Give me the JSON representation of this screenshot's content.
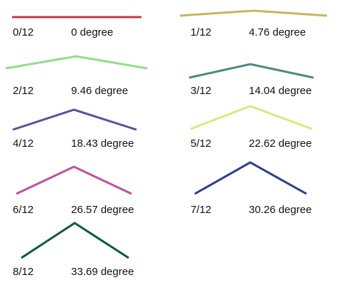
{
  "items": [
    {
      "pitch": "0/12",
      "angle": "0 degree",
      "color": "#c23a48"
    },
    {
      "pitch": "1/12",
      "angle": "4.76 degree",
      "color": "#c9b55e"
    },
    {
      "pitch": "2/12",
      "angle": "9.46 degree",
      "color": "#93dc8c"
    },
    {
      "pitch": "3/12",
      "angle": "14.04 degree",
      "color": "#4b8b82"
    },
    {
      "pitch": "4/12",
      "angle": "18.43 degree",
      "color": "#5b4fa2"
    },
    {
      "pitch": "5/12",
      "angle": "22.62 degree",
      "color": "#d9e97c"
    },
    {
      "pitch": "6/12",
      "angle": "26.57 degree",
      "color": "#c2509f"
    },
    {
      "pitch": "7/12",
      "angle": "30.26 degree",
      "color": "#2b3b92"
    },
    {
      "pitch": "8/12",
      "angle": "33.69 degree",
      "color": "#0b5c38"
    }
  ]
}
